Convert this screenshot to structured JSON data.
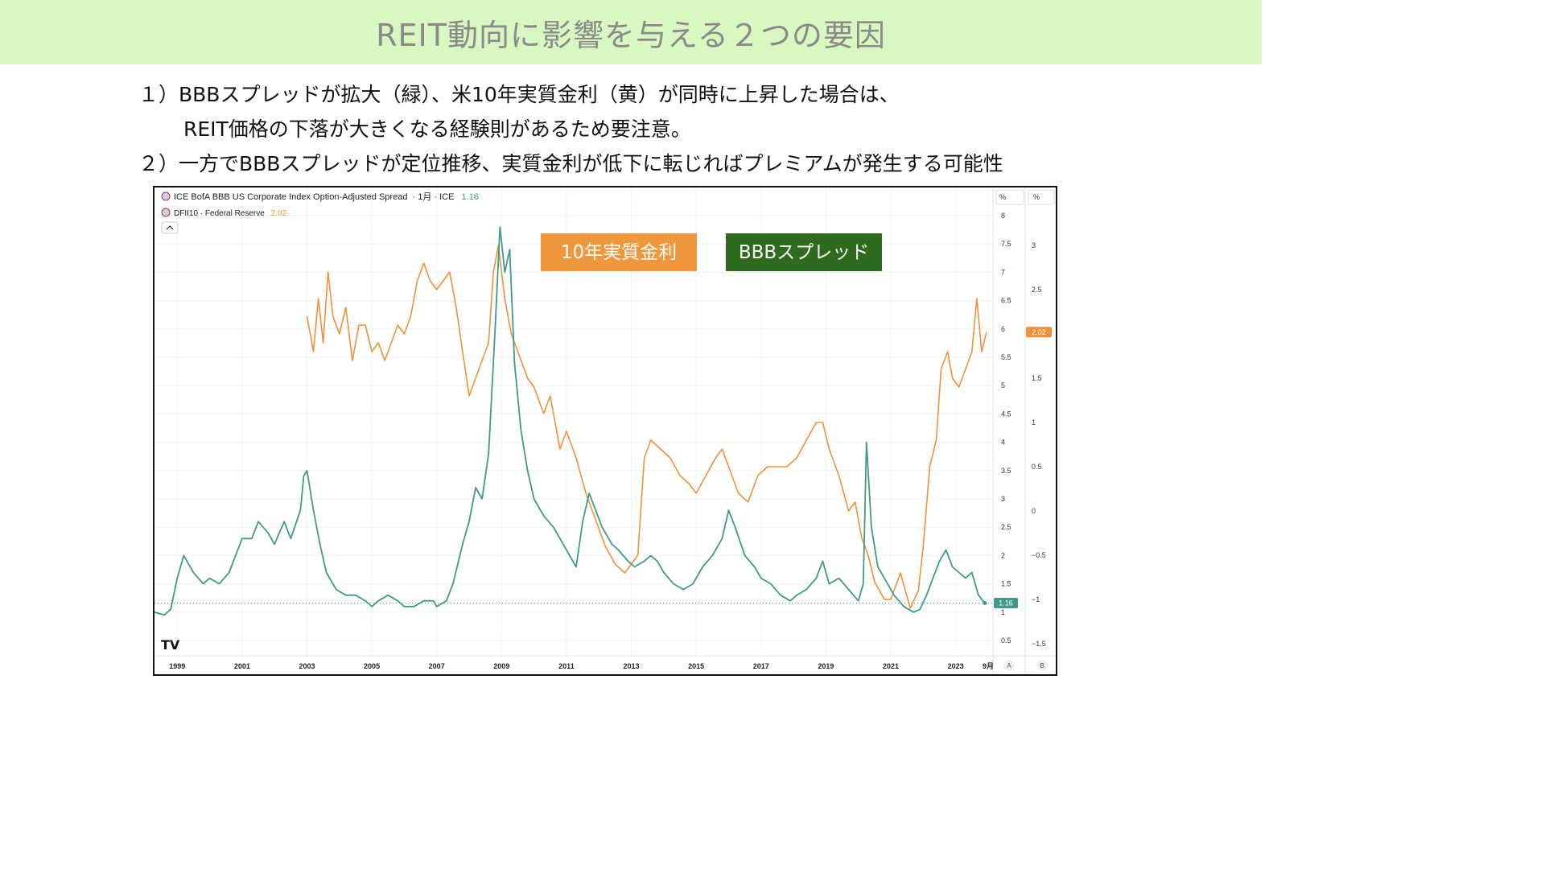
{
  "slide": {
    "title": "REIT動向に影響を与える２つの要因",
    "bullets": [
      "１）BBBスプレッドが拡大（緑）、米10年実質金利（黄）が同時に上昇した場合は、",
      "REIT価格の下落が大きくなる経験則があるため要注意。",
      "２）一方でBBBスプレッドが定位推移、実質金利が低下に転じればプレミアムが発生する可能性"
    ]
  },
  "chart_data": {
    "type": "line",
    "legend": {
      "series_a": {
        "name": "ICE BofA BBB US Corporate Index Option-Adjusted Spread",
        "meta": "· 1月 · ICE",
        "value": "1.16"
      },
      "series_b": {
        "name": "DFII10 · Federal Reserve",
        "value": "2.02"
      }
    },
    "annotations": {
      "real_rate_box": "10年実質金利",
      "spread_box": "BBBスプレッド"
    },
    "axis_a": {
      "unit": "%",
      "ticks": [
        "8",
        "7.5",
        "7",
        "6.5",
        "6",
        "5.5",
        "5",
        "4.5",
        "4",
        "3.5",
        "3",
        "2.5",
        "2",
        "1.5",
        "1",
        "0.5"
      ],
      "range": [
        0.25,
        8.2
      ],
      "letter": "A"
    },
    "axis_b": {
      "unit": "%",
      "ticks": [
        "3",
        "2.5",
        "2",
        "1.5",
        "1",
        "0.5",
        "0",
        "−0.5",
        "−1",
        "−1.5"
      ],
      "range": [
        -1.6,
        3.5
      ],
      "letter": "B"
    },
    "x_ticks": [
      "1999",
      "2001",
      "2003",
      "2005",
      "2007",
      "2009",
      "2011",
      "2013",
      "2015",
      "2017",
      "2019",
      "2021",
      "2023",
      "9月"
    ],
    "x_range": [
      1998.3,
      2024.1
    ],
    "price_labels": {
      "a": "1.16",
      "b": "2.02"
    },
    "logo": "TV",
    "colors": {
      "spread": "#3f9b85",
      "real_rate": "#f0913a",
      "spread_box": "#2f6b1f",
      "real_rate_box": "#f0963c"
    },
    "series": [
      {
        "name": "BBBスプレッド",
        "axis": "A",
        "points": [
          [
            1998.3,
            1.0
          ],
          [
            1998.6,
            0.95
          ],
          [
            1998.8,
            1.05
          ],
          [
            1999.0,
            1.6
          ],
          [
            1999.2,
            2.0
          ],
          [
            1999.5,
            1.7
          ],
          [
            1999.8,
            1.5
          ],
          [
            2000.0,
            1.6
          ],
          [
            2000.3,
            1.5
          ],
          [
            2000.6,
            1.7
          ],
          [
            2000.8,
            2.0
          ],
          [
            2001.0,
            2.3
          ],
          [
            2001.3,
            2.3
          ],
          [
            2001.5,
            2.6
          ],
          [
            2001.8,
            2.4
          ],
          [
            2002.0,
            2.2
          ],
          [
            2002.3,
            2.6
          ],
          [
            2002.5,
            2.3
          ],
          [
            2002.8,
            2.8
          ],
          [
            2002.9,
            3.4
          ],
          [
            2003.0,
            3.5
          ],
          [
            2003.2,
            2.8
          ],
          [
            2003.4,
            2.2
          ],
          [
            2003.6,
            1.7
          ],
          [
            2003.9,
            1.4
          ],
          [
            2004.2,
            1.3
          ],
          [
            2004.5,
            1.3
          ],
          [
            2004.8,
            1.2
          ],
          [
            2005.0,
            1.1
          ],
          [
            2005.2,
            1.2
          ],
          [
            2005.5,
            1.3
          ],
          [
            2005.8,
            1.2
          ],
          [
            2006.0,
            1.1
          ],
          [
            2006.3,
            1.1
          ],
          [
            2006.6,
            1.2
          ],
          [
            2006.9,
            1.2
          ],
          [
            2007.0,
            1.1
          ],
          [
            2007.3,
            1.2
          ],
          [
            2007.5,
            1.5
          ],
          [
            2007.8,
            2.2
          ],
          [
            2008.0,
            2.6
          ],
          [
            2008.2,
            3.2
          ],
          [
            2008.4,
            3.0
          ],
          [
            2008.6,
            3.8
          ],
          [
            2008.8,
            6.0
          ],
          [
            2008.95,
            7.8
          ],
          [
            2009.1,
            7.0
          ],
          [
            2009.25,
            7.4
          ],
          [
            2009.4,
            5.4
          ],
          [
            2009.6,
            4.2
          ],
          [
            2009.8,
            3.5
          ],
          [
            2010.0,
            3.0
          ],
          [
            2010.3,
            2.7
          ],
          [
            2010.6,
            2.5
          ],
          [
            2010.9,
            2.2
          ],
          [
            2011.0,
            2.1
          ],
          [
            2011.3,
            1.8
          ],
          [
            2011.5,
            2.6
          ],
          [
            2011.7,
            3.1
          ],
          [
            2011.9,
            2.8
          ],
          [
            2012.1,
            2.5
          ],
          [
            2012.4,
            2.2
          ],
          [
            2012.6,
            2.1
          ],
          [
            2012.9,
            1.9
          ],
          [
            2013.1,
            1.8
          ],
          [
            2013.4,
            1.9
          ],
          [
            2013.6,
            2.0
          ],
          [
            2013.8,
            1.9
          ],
          [
            2014.0,
            1.7
          ],
          [
            2014.3,
            1.5
          ],
          [
            2014.6,
            1.4
          ],
          [
            2014.9,
            1.5
          ],
          [
            2015.2,
            1.8
          ],
          [
            2015.5,
            2.0
          ],
          [
            2015.8,
            2.3
          ],
          [
            2016.0,
            2.8
          ],
          [
            2016.2,
            2.5
          ],
          [
            2016.5,
            2.0
          ],
          [
            2016.8,
            1.8
          ],
          [
            2017.0,
            1.6
          ],
          [
            2017.3,
            1.5
          ],
          [
            2017.6,
            1.3
          ],
          [
            2017.9,
            1.2
          ],
          [
            2018.1,
            1.3
          ],
          [
            2018.4,
            1.4
          ],
          [
            2018.7,
            1.6
          ],
          [
            2018.9,
            1.9
          ],
          [
            2019.1,
            1.5
          ],
          [
            2019.4,
            1.6
          ],
          [
            2019.7,
            1.4
          ],
          [
            2020.0,
            1.2
          ],
          [
            2020.15,
            1.5
          ],
          [
            2020.25,
            4.0
          ],
          [
            2020.4,
            2.5
          ],
          [
            2020.6,
            1.8
          ],
          [
            2020.9,
            1.5
          ],
          [
            2021.1,
            1.3
          ],
          [
            2021.4,
            1.1
          ],
          [
            2021.7,
            1.0
          ],
          [
            2021.9,
            1.05
          ],
          [
            2022.1,
            1.3
          ],
          [
            2022.3,
            1.6
          ],
          [
            2022.5,
            1.9
          ],
          [
            2022.7,
            2.1
          ],
          [
            2022.9,
            1.8
          ],
          [
            2023.1,
            1.7
          ],
          [
            2023.3,
            1.6
          ],
          [
            2023.5,
            1.7
          ],
          [
            2023.7,
            1.3
          ],
          [
            2023.9,
            1.16
          ]
        ]
      },
      {
        "name": "10年実質金利",
        "axis": "B",
        "points": [
          [
            2003.0,
            2.2
          ],
          [
            2003.2,
            1.8
          ],
          [
            2003.35,
            2.4
          ],
          [
            2003.5,
            1.9
          ],
          [
            2003.65,
            2.7
          ],
          [
            2003.8,
            2.2
          ],
          [
            2004.0,
            2.0
          ],
          [
            2004.2,
            2.3
          ],
          [
            2004.4,
            1.7
          ],
          [
            2004.6,
            2.1
          ],
          [
            2004.8,
            2.1
          ],
          [
            2005.0,
            1.8
          ],
          [
            2005.2,
            1.9
          ],
          [
            2005.4,
            1.7
          ],
          [
            2005.6,
            1.9
          ],
          [
            2005.8,
            2.1
          ],
          [
            2006.0,
            2.0
          ],
          [
            2006.2,
            2.2
          ],
          [
            2006.4,
            2.6
          ],
          [
            2006.6,
            2.8
          ],
          [
            2006.8,
            2.6
          ],
          [
            2007.0,
            2.5
          ],
          [
            2007.2,
            2.6
          ],
          [
            2007.4,
            2.7
          ],
          [
            2007.6,
            2.3
          ],
          [
            2007.8,
            1.8
          ],
          [
            2008.0,
            1.3
          ],
          [
            2008.2,
            1.5
          ],
          [
            2008.4,
            1.7
          ],
          [
            2008.6,
            1.9
          ],
          [
            2008.75,
            2.7
          ],
          [
            2008.9,
            3.0
          ],
          [
            2009.1,
            2.4
          ],
          [
            2009.3,
            2.0
          ],
          [
            2009.5,
            1.8
          ],
          [
            2009.8,
            1.5
          ],
          [
            2010.0,
            1.4
          ],
          [
            2010.3,
            1.1
          ],
          [
            2010.5,
            1.3
          ],
          [
            2010.8,
            0.7
          ],
          [
            2011.0,
            0.9
          ],
          [
            2011.3,
            0.6
          ],
          [
            2011.6,
            0.2
          ],
          [
            2011.9,
            -0.1
          ],
          [
            2012.2,
            -0.4
          ],
          [
            2012.5,
            -0.6
          ],
          [
            2012.8,
            -0.7
          ],
          [
            2013.0,
            -0.6
          ],
          [
            2013.2,
            -0.5
          ],
          [
            2013.4,
            0.6
          ],
          [
            2013.6,
            0.8
          ],
          [
            2013.9,
            0.7
          ],
          [
            2014.2,
            0.6
          ],
          [
            2014.5,
            0.4
          ],
          [
            2014.8,
            0.3
          ],
          [
            2015.0,
            0.2
          ],
          [
            2015.3,
            0.4
          ],
          [
            2015.6,
            0.6
          ],
          [
            2015.8,
            0.7
          ],
          [
            2016.0,
            0.5
          ],
          [
            2016.3,
            0.2
          ],
          [
            2016.6,
            0.1
          ],
          [
            2016.9,
            0.4
          ],
          [
            2017.2,
            0.5
          ],
          [
            2017.5,
            0.5
          ],
          [
            2017.8,
            0.5
          ],
          [
            2018.1,
            0.6
          ],
          [
            2018.4,
            0.8
          ],
          [
            2018.7,
            1.0
          ],
          [
            2018.9,
            1.0
          ],
          [
            2019.1,
            0.7
          ],
          [
            2019.4,
            0.4
          ],
          [
            2019.7,
            0.0
          ],
          [
            2019.9,
            0.1
          ],
          [
            2020.1,
            -0.3
          ],
          [
            2020.3,
            -0.5
          ],
          [
            2020.5,
            -0.8
          ],
          [
            2020.8,
            -1.0
          ],
          [
            2021.0,
            -1.0
          ],
          [
            2021.3,
            -0.7
          ],
          [
            2021.6,
            -1.1
          ],
          [
            2021.85,
            -0.9
          ],
          [
            2022.0,
            -0.4
          ],
          [
            2022.2,
            0.5
          ],
          [
            2022.4,
            0.8
          ],
          [
            2022.55,
            1.6
          ],
          [
            2022.75,
            1.8
          ],
          [
            2022.9,
            1.5
          ],
          [
            2023.1,
            1.4
          ],
          [
            2023.3,
            1.6
          ],
          [
            2023.5,
            1.8
          ],
          [
            2023.65,
            2.4
          ],
          [
            2023.8,
            1.8
          ],
          [
            2023.95,
            2.02
          ]
        ]
      }
    ]
  }
}
